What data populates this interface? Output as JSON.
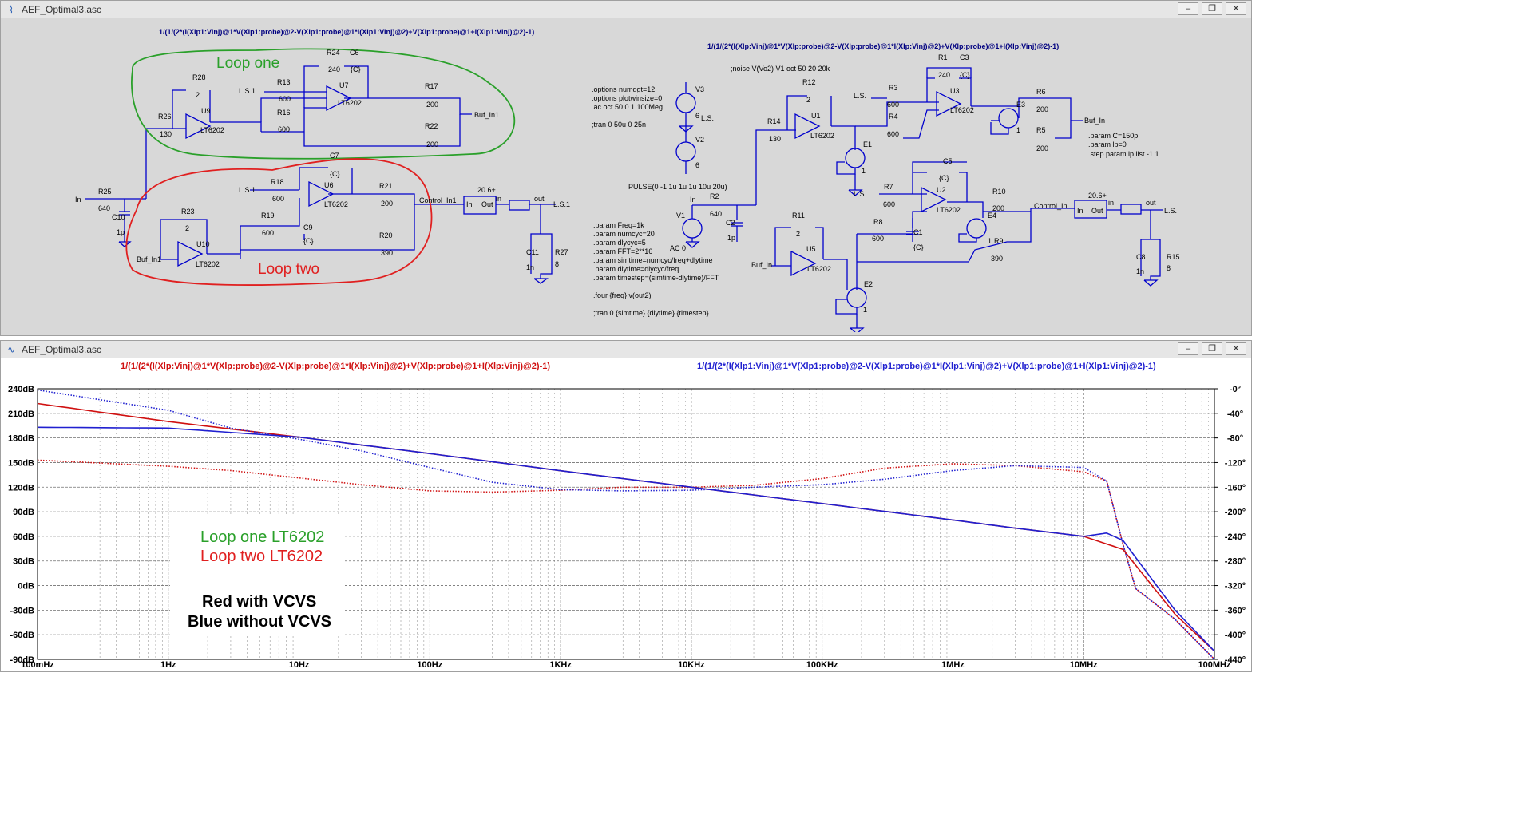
{
  "schematic_window": {
    "title": "AEF_Optimal3.asc",
    "buttons": [
      "–",
      "❐",
      "✕"
    ],
    "probe_left": "1/(1/(2*(I(Xlp1:Vinj)@1*V(Xlp1:probe)@2-V(Xlp1:probe)@1*I(Xlp1:Vinj)@2)+V(Xlp1:probe)@1+I(Xlp1:Vinj)@2)-1)",
    "probe_right": "1/(1/(2*(I(Xlp:Vinj)@1*V(Xlp:probe)@2-V(Xlp:probe)@1*I(Xlp:Vinj)@2)+V(Xlp:probe)@1+I(Xlp:Vinj)@2)-1)",
    "loop_one_label": "Loop one",
    "loop_two_label": "Loop two",
    "directives_1": [
      ".options numdgt=12",
      ".options plotwinsize=0",
      ".ac oct 50 0.1 100Meg",
      "",
      ";tran 0 50u 0 25n"
    ],
    "noise_directive": ";noise V(Vo2) V1 oct 50 20 20k",
    "pulse_text": "PULSE(0 -1 1u 1u 1u 10u 20u)",
    "ac_text": "AC 0",
    "params": [
      ".param Freq=1k",
      ".param numcyc=20",
      ".param dlycyc=5",
      ".param FFT=2**16",
      ".param simtime=numcyc/freq+dlytime",
      ".param dlytime=dlycyc/freq",
      ".param timestep=(simtime-dlytime)/FFT",
      "",
      ".four {freq} v(out2)",
      "",
      ";tran 0 {simtime} {dlytime} {timestep}"
    ],
    "params_right": [
      ".param C=150p",
      ".param lp=0",
      ".step param lp list -1 1"
    ],
    "labels": {
      "R28": "R28",
      "v2a": "2",
      "R24": "R24",
      "v240a": "240",
      "C6": "C6",
      "Cc6": "{C}",
      "R13": "R13",
      "v600a": "600",
      "U7": "U7",
      "lt": "LT6202",
      "R17": "R17",
      "v200a": "200",
      "LS1": "L.S.1",
      "R16": "R16",
      "v600b": "600",
      "U9": "U9",
      "R26": "R26",
      "v130a": "130",
      "R22": "R22",
      "v200b": "200",
      "BufIn1": "Buf_In1",
      "In": "In",
      "R25": "R25",
      "v640a": "640",
      "C10": "C10",
      "v1pa": "1p",
      "C7": "C7",
      "Cc7": "{C}",
      "R18": "R18",
      "v600c": "600",
      "U6": "U6",
      "R21": "R21",
      "v200c": "200",
      "ControlIn1": "Control_In1",
      "g206a": "20.6+",
      "in": "in",
      "out": "out",
      "In2": "In",
      "Out2": "Out",
      "LS1b": "L.S.1",
      "R23": "R23",
      "v2b": "2",
      "R19": "R19",
      "v600d": "600",
      "C9": "C9",
      "Cc9": "{C}",
      "U10": "U10",
      "R20": "R20",
      "v390a": "390",
      "C11": "C11",
      "v1na": "1n",
      "R27": "R27",
      "v8a": "8",
      "V3": "V3",
      "v6a": "6",
      "LSr": "L.S.",
      "V2": "V2",
      "v6b": "6",
      "R14": "R14",
      "v130b": "130",
      "R12": "R12",
      "v2c": "2",
      "U1": "U1",
      "E1": "E1",
      "one": "1",
      "R1": "R1",
      "v240b": "240",
      "C3": "C3",
      "Cc3": "{C}",
      "R3": "R3",
      "v600e": "600",
      "U3": "U3",
      "R6": "R6",
      "v200d": "200",
      "E3": "E3",
      "R4": "R4",
      "v600f": "600",
      "R5": "R5",
      "v200e": "200",
      "BufIn": "Buf_In",
      "LSa": "L.S.",
      "LSb": "L.S.",
      "R2": "R2",
      "v640b": "640",
      "C2": "C2",
      "v1pb": "1p",
      "V1": "V1",
      "C5": "C5",
      "Cc5": "{C}",
      "R7": "R7",
      "v600g": "600",
      "U2": "U2",
      "R10": "R10",
      "v200f": "200",
      "E4": "E4",
      "ControlIn": "Control_In",
      "g206b": "20.6+",
      "R11": "R11",
      "v2d": "2",
      "U5": "U5",
      "BufInb": "Buf_In",
      "R8": "R8",
      "v600h": "600",
      "C1": "C1",
      "Cc1": "{C}",
      "R9": "R9",
      "v390b": "390",
      "E2": "E2",
      "C8": "C8",
      "v1nb": "1n",
      "R15": "R15",
      "v8b": "8"
    }
  },
  "plot_window": {
    "title": "AEF_Optimal3.asc",
    "buttons": [
      "–",
      "❐",
      "✕"
    ],
    "trace_red_label": "1/(1/(2*(I(Xlp:Vinj)@1*V(Xlp:probe)@2-V(Xlp:probe)@1*I(Xlp:Vinj)@2)+V(Xlp:probe)@1+I(Xlp:Vinj)@2)-1)",
    "trace_blue_label": "1/(1/(2*(I(Xlp1:Vinj)@1*V(Xlp1:probe)@2-V(Xlp1:probe)@1*I(Xlp1:Vinj)@2)+V(Xlp1:probe)@1+I(Xlp1:Vinj)@2)-1)",
    "annot_loop_one": "Loop one LT6202",
    "annot_loop_two": "Loop two LT6202",
    "annot_red": "Red with VCVS",
    "annot_blue": "Blue without VCVS"
  },
  "chart_data": {
    "type": "line",
    "x_scale": "log",
    "xlim": [
      0.1,
      100000000
    ],
    "x_ticks": [
      {
        "value": 0.1,
        "label": "100mHz"
      },
      {
        "value": 1,
        "label": "1Hz"
      },
      {
        "value": 10,
        "label": "10Hz"
      },
      {
        "value": 100,
        "label": "100Hz"
      },
      {
        "value": 1000,
        "label": "1KHz"
      },
      {
        "value": 10000,
        "label": "10KHz"
      },
      {
        "value": 100000,
        "label": "100KHz"
      },
      {
        "value": 1000000,
        "label": "1MHz"
      },
      {
        "value": 10000000,
        "label": "10MHz"
      },
      {
        "value": 100000000,
        "label": "100MHz"
      }
    ],
    "ylim_left": [
      -90,
      240
    ],
    "y_ticks_left": [
      "240dB",
      "210dB",
      "180dB",
      "150dB",
      "120dB",
      "90dB",
      "60dB",
      "30dB",
      "0dB",
      "-30dB",
      "-60dB",
      "-90dB"
    ],
    "y_ticks_left_values": [
      240,
      210,
      180,
      150,
      120,
      90,
      60,
      30,
      0,
      -30,
      -60,
      -90
    ],
    "ylim_right": [
      -440,
      0
    ],
    "y_ticks_right": [
      "-0°",
      "-40°",
      "-80°",
      "-120°",
      "-160°",
      "-200°",
      "-240°",
      "-280°",
      "-320°",
      "-360°",
      "-400°",
      "-440°"
    ],
    "y_ticks_right_values": [
      0,
      -40,
      -80,
      -120,
      -160,
      -200,
      -240,
      -280,
      -320,
      -360,
      -400,
      -440
    ],
    "grid": true,
    "series": [
      {
        "color": "#d01010",
        "style": "solid",
        "axis": "left",
        "x": [
          0.1,
          1,
          10,
          100,
          1000,
          10000,
          100000,
          1000000,
          3000000,
          10000000,
          20000000,
          50000000,
          100000000
        ],
        "y": [
          222,
          200,
          181,
          161,
          140,
          120,
          100,
          80,
          70,
          60,
          44,
          -35,
          -80
        ]
      },
      {
        "color": "#d01010",
        "style": "dotted",
        "axis": "phase",
        "x": [
          0.1,
          1,
          3,
          10,
          30,
          100,
          300,
          1000,
          3000,
          10000,
          30000,
          100000,
          300000,
          1000000,
          3000000,
          10000000,
          15000000,
          20000000,
          25000000,
          30000000,
          50000000,
          100000000
        ],
        "y": [
          -116,
          -126,
          -133,
          -145,
          -156,
          -166,
          -168,
          -165,
          -160,
          -160,
          -157,
          -146,
          -129,
          -122,
          -125,
          -135,
          -150,
          -253,
          -325,
          -338,
          -375,
          -440
        ]
      },
      {
        "color": "#2020d0",
        "style": "solid",
        "axis": "left",
        "x": [
          0.1,
          1,
          10,
          100,
          1000,
          10000,
          100000,
          1000000,
          3000000,
          10000000,
          15000000,
          20000000,
          50000000,
          100000000
        ],
        "y": [
          193,
          192,
          181,
          161,
          140,
          120,
          100,
          80,
          70,
          60,
          64,
          55,
          -30,
          -80
        ]
      },
      {
        "color": "#2020d0",
        "style": "dotted",
        "axis": "phase",
        "x": [
          0.1,
          1,
          3,
          10,
          30,
          100,
          300,
          1000,
          3000,
          10000,
          30000,
          100000,
          300000,
          1000000,
          3000000,
          10000000,
          15000000,
          20000000,
          25000000,
          30000000,
          50000000,
          100000000
        ],
        "y": [
          -2,
          -35,
          -64,
          -82,
          -101,
          -128,
          -152,
          -164,
          -166,
          -165,
          -160,
          -156,
          -147,
          -133,
          -125,
          -128,
          -150,
          -253,
          -325,
          -338,
          -375,
          -440
        ]
      }
    ]
  }
}
